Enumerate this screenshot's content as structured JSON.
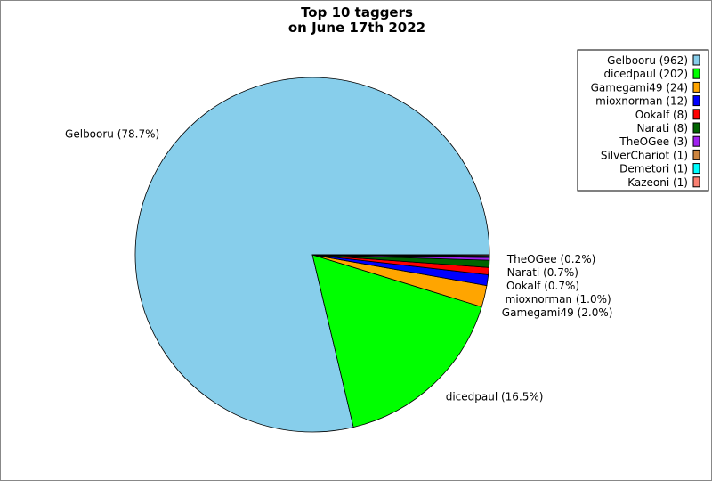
{
  "chart_data": {
    "type": "pie",
    "title": [
      "Top 10 taggers",
      "on June 17th 2022"
    ],
    "start_angle_deg": 0,
    "direction": "counterclockwise",
    "legend_position": "top-right",
    "slices": [
      {
        "name": "Gelbooru",
        "value": 962,
        "color": "#87CEEB",
        "legend": "Gelbooru (962)",
        "label": "Gelbooru (78.7%)"
      },
      {
        "name": "dicedpaul",
        "value": 202,
        "color": "#00FF00",
        "legend": "dicedpaul (202)",
        "label": "dicedpaul (16.5%)"
      },
      {
        "name": "Gamegami49",
        "value": 24,
        "color": "#FFA500",
        "legend": "Gamegami49 (24)",
        "label": "Gamegami49 (2.0%)"
      },
      {
        "name": "mioxnorman",
        "value": 12,
        "color": "#0000FF",
        "legend": "mioxnorman (12)",
        "label": "mioxnorman (1.0%)"
      },
      {
        "name": "Ookalf",
        "value": 8,
        "color": "#FF0000",
        "legend": "Ookalf (8)",
        "label": "Ookalf (0.7%)"
      },
      {
        "name": "Narati",
        "value": 8,
        "color": "#006400",
        "legend": "Narati (8)",
        "label": "Narati (0.7%)"
      },
      {
        "name": "TheOGee",
        "value": 3,
        "color": "#A020F0",
        "legend": "TheOGee (3)",
        "label": "TheOGee (0.2%)"
      },
      {
        "name": "SilverChariot",
        "value": 1,
        "color": "#CD853F",
        "legend": "SilverChariot (1)",
        "label": null
      },
      {
        "name": "Demetori",
        "value": 1,
        "color": "#00FFFF",
        "legend": "Demetori (1)",
        "label": null
      },
      {
        "name": "Kazeoni",
        "value": 1,
        "color": "#FA8072",
        "legend": "Kazeoni (1)",
        "label": null
      }
    ]
  }
}
